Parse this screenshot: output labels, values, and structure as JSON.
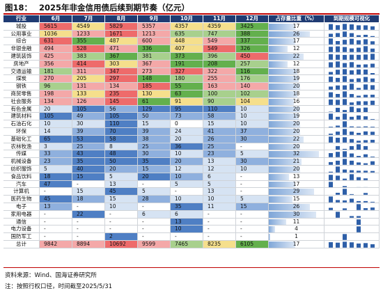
{
  "figure_label": "图18：",
  "title": "2025年非金信用债后续到期节奏（亿元）",
  "headers": [
    "行业",
    "6月",
    "7月",
    "8月",
    "9月",
    "10月",
    "11月",
    "12月",
    "占存量比重（%）",
    "到期规模可视化"
  ],
  "colors": {
    "header_bg": "#1f3b73",
    "title_line": "#c00000",
    "spark": "#2e5fa8",
    "max": "#ee6b6b",
    "high": "#f4a8a8",
    "low_green": "#a8d08d",
    "min": "#63b04d",
    "mid_yellow": "#f5df8c",
    "blue_dark": "#4f7fc4",
    "blue_mid": "#8fb0de",
    "blue_light": "#d6e3f3"
  },
  "rows": [
    {
      "name": "城投",
      "values": [
        "5615",
        "4549",
        "5829",
        "5357",
        "4357",
        "4359",
        "3425"
      ],
      "share": "17"
    },
    {
      "name": "公用事业",
      "values": [
        "1036",
        "1233",
        "1671",
        "1213",
        "635",
        "747",
        "388"
      ],
      "share": "26"
    },
    {
      "name": "综合",
      "values": [
        "631",
        "355",
        "487",
        "600",
        "448",
        "549",
        "337"
      ],
      "share": "17"
    },
    {
      "name": "非银金融",
      "values": [
        "494",
        "528",
        "471",
        "336",
        "407",
        "549",
        "326"
      ],
      "share": "12"
    },
    {
      "name": "建筑装饰",
      "values": [
        "425",
        "383",
        "367",
        "381",
        "373",
        "396",
        "450"
      ],
      "share": "22"
    },
    {
      "name": "房地产",
      "values": [
        "356",
        "414",
        "303",
        "367",
        "191",
        "208",
        "257"
      ],
      "share": "12"
    },
    {
      "name": "交通运输",
      "values": [
        "181",
        "311",
        "347",
        "273",
        "327",
        "322",
        "116"
      ],
      "share": "18"
    },
    {
      "name": "煤炭",
      "values": [
        "270",
        "205",
        "297",
        "148",
        "180",
        "255",
        "176"
      ],
      "share": "19"
    },
    {
      "name": "钢铁",
      "values": [
        "96",
        "131",
        "134",
        "185",
        "55",
        "163",
        "140"
      ],
      "share": "20"
    },
    {
      "name": "商贸零售",
      "values": [
        "198",
        "133",
        "235",
        "130",
        "63",
        "100",
        "102"
      ],
      "share": "18"
    },
    {
      "name": "社会服务",
      "values": [
        "134",
        "126",
        "145",
        "61",
        "91",
        "90",
        "104"
      ],
      "share": "16"
    },
    {
      "name": "有色金属",
      "values": [
        "20",
        "105",
        "56",
        "129",
        "95",
        "110",
        "10"
      ],
      "share": "20"
    },
    {
      "name": "建筑材料",
      "values": [
        "105",
        "49",
        "105",
        "50",
        "73",
        "58",
        "10"
      ],
      "share": "19"
    },
    {
      "name": "石油石化",
      "values": [
        "10",
        "30",
        "110",
        "15",
        "0",
        "15",
        "10"
      ],
      "share": "20"
    },
    {
      "name": "环保",
      "values": [
        "14",
        "39",
        "70",
        "39",
        "24",
        "41",
        "37"
      ],
      "share": "20"
    },
    {
      "name": "基础化工",
      "values": [
        "65",
        "53",
        "58",
        "38",
        "20",
        "26",
        "30"
      ],
      "share": "22"
    },
    {
      "name": "农林牧渔",
      "values": [
        "3",
        "25",
        "8",
        "25",
        "36",
        "25",
        "-"
      ],
      "share": "20"
    },
    {
      "name": "传媒",
      "values": [
        "33",
        "43",
        "48",
        "30",
        "10",
        "23",
        "5"
      ],
      "share": "32"
    },
    {
      "name": "机械设备",
      "values": [
        "23",
        "35",
        "50",
        "35",
        "20",
        "13",
        "30"
      ],
      "share": "21"
    },
    {
      "name": "纺织服饰",
      "values": [
        "5",
        "40",
        "20",
        "15",
        "12",
        "12",
        "10"
      ],
      "share": "20"
    },
    {
      "name": "食品饮料",
      "values": [
        "18",
        "15",
        "5",
        "20",
        "10",
        "6",
        "-"
      ],
      "share": "13"
    },
    {
      "name": "汽车",
      "values": [
        "47",
        "-",
        "13",
        "-",
        "5",
        "5",
        "-"
      ],
      "share": "17"
    },
    {
      "name": "计算机",
      "values": [
        "-",
        "15",
        "45",
        "5",
        "-",
        "13",
        "-"
      ],
      "share": "29"
    },
    {
      "name": "医药生物",
      "values": [
        "45",
        "18",
        "15",
        "28",
        "10",
        "10",
        "5"
      ],
      "share": "15"
    },
    {
      "name": "电子",
      "values": [
        "13",
        "-",
        "10",
        "-",
        "35",
        "11",
        "15"
      ],
      "share": "26"
    },
    {
      "name": "家用电器",
      "values": [
        "-",
        "22",
        "-",
        "6",
        "6",
        "-",
        "-"
      ],
      "share": "30"
    },
    {
      "name": "通信",
      "values": [
        "-",
        "-",
        "-",
        "-",
        "13",
        "-",
        "-"
      ],
      "share": "11"
    },
    {
      "name": "电力设备",
      "values": [
        "-",
        "-",
        "-",
        "-",
        "10",
        "-",
        "-"
      ],
      "share": "4"
    },
    {
      "name": "国防军工",
      "values": [
        "-",
        "-",
        "2",
        "-",
        "-",
        "-",
        "-"
      ],
      "share": "1"
    },
    {
      "name": "总计",
      "values": [
        "9842",
        "8894",
        "10692",
        "9599",
        "7465",
        "8235",
        "6105"
      ],
      "share": "17"
    }
  ],
  "source": "资料来源：Wind、国海证券研究所",
  "note": "注：按照行权口径，时间截至2025/5/31"
}
